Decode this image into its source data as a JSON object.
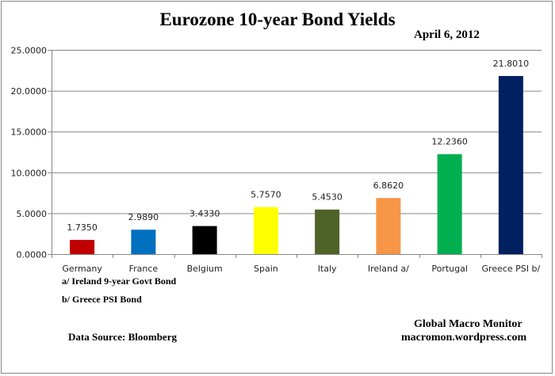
{
  "chart_data": {
    "type": "bar",
    "title": "Eurozone 10-year Bond Yields",
    "subtitle": "April 6, 2012",
    "categories": [
      "Germany",
      "France",
      "Belgium",
      "Spain",
      "Italy",
      "Ireland  a/",
      "Portugal",
      "Greece PSI b/"
    ],
    "values": [
      1.735,
      2.989,
      3.433,
      5.757,
      5.453,
      6.862,
      12.236,
      21.801
    ],
    "data_labels": [
      "1.7350",
      "2.9890",
      "3.4330",
      "5.7570",
      "5.4530",
      "6.8620",
      "12.2360",
      "21.8010"
    ],
    "colors": [
      "#c00000",
      "#0070c0",
      "#000000",
      "#ffff00",
      "#4f6228",
      "#f79646",
      "#00b050",
      "#002060"
    ],
    "ylim": [
      0,
      25
    ],
    "yticks": [
      0,
      5,
      10,
      15,
      20,
      25
    ],
    "ytick_labels": [
      "0.0000",
      "5.0000",
      "10.0000",
      "15.0000",
      "20.0000",
      "25.0000"
    ],
    "grid": true,
    "xlabel": "",
    "ylabel": ""
  },
  "notes": {
    "a": "a/ Ireland 9-year Govt Bond",
    "b": "b/  Greece PSI Bond"
  },
  "source": "Data Source:  Bloomberg",
  "credit": {
    "line1": "Global Macro Monitor",
    "line2": "macromon.wordpress.com"
  }
}
